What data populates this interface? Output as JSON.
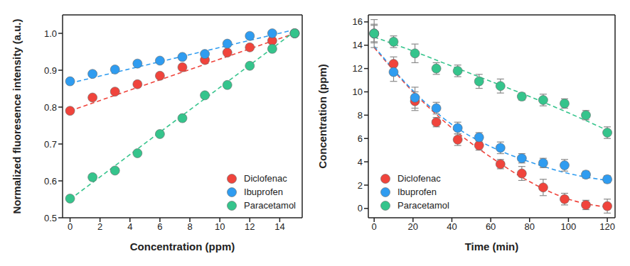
{
  "chart_data": [
    {
      "type": "scatter",
      "x_label": "Concentration (ppm)",
      "y_label": "Normalized fluoresence intensity (a.u.)",
      "xlim": [
        -0.5,
        15.5
      ],
      "xticks": [
        0,
        2,
        4,
        6,
        8,
        10,
        12,
        14
      ],
      "ylim": [
        0.5,
        1.05
      ],
      "yticks": [
        0.5,
        0.6,
        0.7,
        0.8,
        0.9,
        {
          "value": 1,
          "label": "1.0"
        }
      ],
      "legend": "lower right",
      "grid": false,
      "x": [
        0,
        1.5,
        3,
        4.5,
        6,
        7.5,
        9,
        10.5,
        12,
        13.5,
        15
      ],
      "series": [
        {
          "name": "Diclofenac",
          "color": "#f0443c",
          "marker": "circle",
          "values": [
            0.79,
            0.826,
            0.842,
            0.862,
            0.885,
            0.908,
            0.928,
            0.948,
            0.962,
            0.98,
            1.0
          ],
          "fit": {
            "line_style": "dashed",
            "x": [
              0,
              15
            ],
            "values": [
              0.79,
              1.0
            ]
          }
        },
        {
          "name": "Ibuprofen",
          "color": "#2f9cf0",
          "marker": "circle",
          "values": [
            0.87,
            0.89,
            0.902,
            0.918,
            0.926,
            0.936,
            0.944,
            0.972,
            0.993,
            1.0,
            1.0
          ],
          "fit": {
            "line_style": "dashed",
            "x": [
              0,
              15
            ],
            "values": [
              0.865,
              1.01
            ]
          }
        },
        {
          "name": "Paracetamol",
          "color": "#35c48c",
          "marker": "circle",
          "values": [
            0.552,
            0.61,
            0.628,
            0.675,
            0.727,
            0.77,
            0.832,
            0.86,
            0.912,
            0.958,
            1.0
          ],
          "fit": {
            "line_style": "dashed",
            "x": [
              0,
              15
            ],
            "values": [
              0.55,
              1.005
            ]
          }
        }
      ]
    },
    {
      "type": "scatter",
      "x_label": "Time (min)",
      "y_label": "Concentration (ppm)",
      "xlim": [
        -3,
        124
      ],
      "xticks": [
        0,
        20,
        40,
        60,
        80,
        100,
        120
      ],
      "ylim": [
        -0.8,
        16.6
      ],
      "yticks": [
        0,
        2,
        4,
        6,
        8,
        10,
        12,
        14,
        16
      ],
      "legend": "lower left",
      "grid": false,
      "x": [
        0,
        10,
        21,
        32,
        43,
        54,
        65,
        76,
        87,
        98,
        109,
        120
      ],
      "series": [
        {
          "name": "Diclofenac",
          "color": "#f0443c",
          "marker": "circle",
          "values": [
            15,
            12.4,
            9.2,
            7.4,
            5.9,
            5.4,
            3.8,
            3.0,
            1.8,
            0.8,
            0.3,
            0.2
          ],
          "errors": [
            0.7,
            0.6,
            0.8,
            0.4,
            0.5,
            0.4,
            0.4,
            0.6,
            0.7,
            0.5,
            0.4,
            0.6
          ],
          "fit": {
            "line_style": "dashed",
            "x": [
              0,
              20,
              40,
              60,
              80,
              100,
              120
            ],
            "values": [
              13.8,
              10.0,
              6.9,
              4.4,
              2.3,
              0.8,
              0.1
            ]
          }
        },
        {
          "name": "Ibuprofen",
          "color": "#2f9cf0",
          "marker": "circle",
          "values": [
            15,
            11.7,
            9.5,
            8.6,
            6.9,
            6.1,
            5.2,
            4.3,
            3.9,
            3.7,
            2.9,
            2.5
          ],
          "errors": [
            1.2,
            0.8,
            0.9,
            0.5,
            0.5,
            0.4,
            0.5,
            0.4,
            0.4,
            0.5,
            0.3,
            0.3
          ],
          "fit": {
            "line_style": "dashed",
            "x": [
              0,
              20,
              40,
              60,
              80,
              100,
              120
            ],
            "values": [
              13.9,
              10.1,
              7.2,
              5.3,
              4.0,
              3.0,
              2.4
            ]
          }
        },
        {
          "name": "Paracetamol",
          "color": "#35c48c",
          "marker": "circle",
          "values": [
            15,
            14.3,
            13.3,
            12.0,
            11.8,
            10.9,
            10.5,
            9.6,
            9.3,
            9.0,
            8.0,
            6.5
          ],
          "errors": [
            0.8,
            0.5,
            0.8,
            0.5,
            0.5,
            0.6,
            0.6,
            0.3,
            0.5,
            0.4,
            0.4,
            0.5
          ],
          "fit": {
            "line_style": "dashed",
            "x": [
              0,
              20,
              40,
              60,
              80,
              100,
              120
            ],
            "values": [
              14.7,
              13.5,
              12.2,
              10.9,
              9.6,
              8.2,
              6.7
            ]
          }
        }
      ]
    }
  ]
}
